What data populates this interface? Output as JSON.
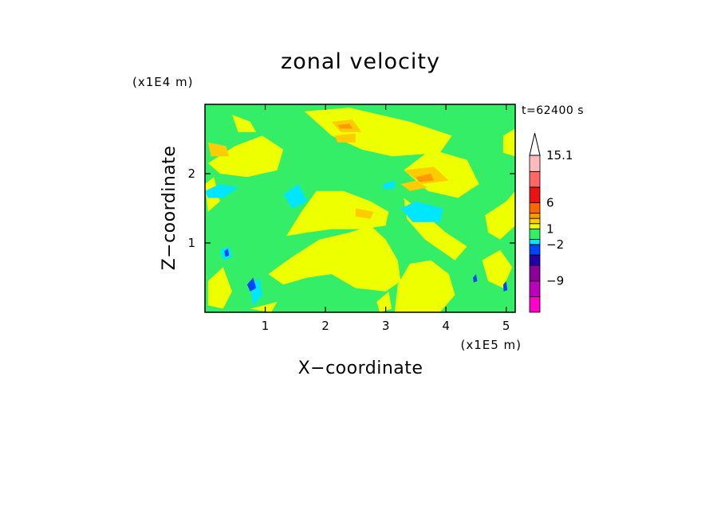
{
  "chart_data": {
    "type": "heatmap",
    "title": "zonal velocity",
    "xlabel": "X−coordinate",
    "ylabel": "Z−coordinate",
    "x_unit": "(x1E5 m)",
    "y_unit": "(x1E4 m)",
    "time_label": "t=62400 s",
    "xlim": [
      0.0,
      5.15
    ],
    "ylim": [
      0.0,
      3.0
    ],
    "x_ticks": [
      {
        "value": 1,
        "label": "1"
      },
      {
        "value": 2,
        "label": "2"
      },
      {
        "value": 3,
        "label": "3"
      },
      {
        "value": 4,
        "label": "4"
      },
      {
        "value": 5,
        "label": "5"
      }
    ],
    "y_ticks": [
      {
        "value": 1,
        "label": "1"
      },
      {
        "value": 2,
        "label": "2"
      }
    ],
    "colorbar": {
      "levels": [
        {
          "color": "#ff00c8"
        },
        {
          "color": "#bd00bd"
        },
        {
          "color": "#8c009a"
        },
        {
          "color": "#2200aa"
        },
        {
          "color": "#0044ff"
        },
        {
          "color": "#00e6ff"
        },
        {
          "color": "#33ee66"
        },
        {
          "color": "#eeff00"
        },
        {
          "color": "#ffcc00"
        },
        {
          "color": "#ff9900"
        },
        {
          "color": "#ff6600"
        },
        {
          "color": "#ee1111"
        },
        {
          "color": "#ff6666"
        },
        {
          "color": "#ffbbbb"
        }
      ],
      "extend_max_color": "#ffffff",
      "labels": [
        {
          "value": 15.1,
          "label": "15.1"
        },
        {
          "value": 6,
          "label": "6"
        },
        {
          "value": 1,
          "label": "1"
        },
        {
          "value": -2,
          "label": "−2"
        },
        {
          "value": -9,
          "label": "−9"
        }
      ]
    },
    "field": {
      "background_color": "#33ee66",
      "regions": [
        {
          "color": "#eeff00",
          "points": [
            [
              1.05,
              0.55
            ],
            [
              1.45,
              0.8
            ],
            [
              1.9,
              1.05
            ],
            [
              2.4,
              1.15
            ],
            [
              2.75,
              1.25
            ],
            [
              3.0,
              1.05
            ],
            [
              3.2,
              0.75
            ],
            [
              3.25,
              0.45
            ],
            [
              3.0,
              0.3
            ],
            [
              2.5,
              0.35
            ],
            [
              2.1,
              0.55
            ],
            [
              1.7,
              0.5
            ],
            [
              1.3,
              0.4
            ]
          ]
        },
        {
          "color": "#eeff00",
          "points": [
            [
              1.35,
              1.1
            ],
            [
              1.6,
              1.45
            ],
            [
              1.85,
              1.75
            ],
            [
              2.3,
              1.75
            ],
            [
              2.75,
              1.6
            ],
            [
              3.05,
              1.45
            ],
            [
              3.0,
              1.25
            ],
            [
              2.6,
              1.2
            ],
            [
              2.1,
              1.2
            ],
            [
              1.7,
              1.15
            ]
          ]
        },
        {
          "color": "#eeff00",
          "points": [
            [
              0.05,
              2.15
            ],
            [
              0.5,
              2.4
            ],
            [
              0.95,
              2.55
            ],
            [
              1.3,
              2.35
            ],
            [
              1.2,
              2.05
            ],
            [
              0.7,
              1.95
            ],
            [
              0.25,
              2.0
            ]
          ]
        },
        {
          "color": "#eeff00",
          "points": [
            [
              1.65,
              2.9
            ],
            [
              2.4,
              2.95
            ],
            [
              3.4,
              2.75
            ],
            [
              4.1,
              2.55
            ],
            [
              3.9,
              2.3
            ],
            [
              3.1,
              2.25
            ],
            [
              2.6,
              2.35
            ],
            [
              2.1,
              2.55
            ]
          ]
        },
        {
          "color": "#eeff00",
          "points": [
            [
              3.3,
              2.05
            ],
            [
              3.75,
              2.35
            ],
            [
              4.35,
              2.2
            ],
            [
              4.55,
              1.85
            ],
            [
              4.2,
              1.65
            ],
            [
              3.7,
              1.75
            ]
          ]
        },
        {
          "color": "#eeff00",
          "points": [
            [
              3.3,
              1.65
            ],
            [
              3.6,
              1.45
            ],
            [
              4.0,
              1.15
            ],
            [
              4.35,
              0.95
            ],
            [
              4.15,
              0.75
            ],
            [
              3.65,
              1.05
            ],
            [
              3.35,
              1.35
            ]
          ]
        },
        {
          "color": "#eeff00",
          "points": [
            [
              3.15,
              0.0
            ],
            [
              3.9,
              0.0
            ],
            [
              4.15,
              0.25
            ],
            [
              4.05,
              0.55
            ],
            [
              3.75,
              0.75
            ],
            [
              3.4,
              0.7
            ],
            [
              3.2,
              0.4
            ]
          ]
        },
        {
          "color": "#eeff00",
          "points": [
            [
              4.65,
              1.4
            ],
            [
              5.0,
              1.6
            ],
            [
              5.15,
              1.75
            ],
            [
              5.15,
              1.25
            ],
            [
              4.9,
              1.05
            ],
            [
              4.7,
              1.15
            ]
          ]
        },
        {
          "color": "#eeff00",
          "points": [
            [
              4.6,
              0.75
            ],
            [
              4.9,
              0.9
            ],
            [
              5.1,
              0.65
            ],
            [
              4.95,
              0.35
            ],
            [
              4.7,
              0.45
            ]
          ]
        },
        {
          "color": "#eeff00",
          "points": [
            [
              0.05,
              0.45
            ],
            [
              0.3,
              0.65
            ],
            [
              0.45,
              0.3
            ],
            [
              0.3,
              0.05
            ],
            [
              0.05,
              0.1
            ]
          ]
        },
        {
          "color": "#eeff00",
          "points": [
            [
              0.0,
              1.85
            ],
            [
              0.15,
              1.95
            ],
            [
              0.25,
              1.6
            ],
            [
              0.05,
              1.45
            ]
          ]
        },
        {
          "color": "#eeff00",
          "points": [
            [
              2.85,
              0.15
            ],
            [
              3.05,
              0.3
            ],
            [
              3.1,
              0.05
            ],
            [
              2.9,
              0.0
            ]
          ]
        },
        {
          "color": "#eeff00",
          "points": [
            [
              4.95,
              2.55
            ],
            [
              5.15,
              2.65
            ],
            [
              5.15,
              2.25
            ],
            [
              4.95,
              2.3
            ]
          ]
        },
        {
          "color": "#eeff00",
          "points": [
            [
              0.45,
              2.85
            ],
            [
              0.75,
              2.75
            ],
            [
              0.85,
              2.6
            ],
            [
              0.55,
              2.6
            ]
          ]
        },
        {
          "color": "#eeff00",
          "points": [
            [
              0.75,
              0.05
            ],
            [
              1.2,
              0.15
            ],
            [
              1.1,
              0.0
            ]
          ]
        },
        {
          "color": "#ffcc00",
          "points": [
            [
              0.05,
              2.45
            ],
            [
              0.35,
              2.4
            ],
            [
              0.4,
              2.25
            ],
            [
              0.1,
              2.25
            ]
          ]
        },
        {
          "color": "#ffcc00",
          "points": [
            [
              3.25,
              1.85
            ],
            [
              3.5,
              1.9
            ],
            [
              3.7,
              1.8
            ],
            [
              3.4,
              1.75
            ]
          ]
        },
        {
          "color": "#ffcc00",
          "points": [
            [
              2.15,
              2.55
            ],
            [
              2.5,
              2.58
            ],
            [
              2.5,
              2.45
            ],
            [
              2.2,
              2.45
            ]
          ]
        },
        {
          "color": "#ffcc00",
          "points": [
            [
              2.5,
              1.5
            ],
            [
              2.8,
              1.45
            ],
            [
              2.75,
              1.35
            ],
            [
              2.5,
              1.38
            ]
          ]
        },
        {
          "color": "#ffcc00",
          "points": [
            [
              3.3,
              2.05
            ],
            [
              3.8,
              2.1
            ],
            [
              4.05,
              1.9
            ],
            [
              3.6,
              1.85
            ]
          ]
        },
        {
          "color": "#ffcc00",
          "points": [
            [
              2.1,
              2.75
            ],
            [
              2.45,
              2.78
            ],
            [
              2.6,
              2.6
            ],
            [
              2.25,
              2.6
            ]
          ]
        },
        {
          "color": "#ff9900",
          "points": [
            [
              3.5,
              1.95
            ],
            [
              3.75,
              2.0
            ],
            [
              3.8,
              1.9
            ],
            [
              3.55,
              1.88
            ]
          ]
        },
        {
          "color": "#ff9900",
          "points": [
            [
              2.2,
              2.7
            ],
            [
              2.4,
              2.72
            ],
            [
              2.45,
              2.65
            ],
            [
              2.25,
              2.65
            ]
          ]
        },
        {
          "color": "#00e6ff",
          "points": [
            [
              3.25,
              1.5
            ],
            [
              3.5,
              1.6
            ],
            [
              3.95,
              1.5
            ],
            [
              3.9,
              1.3
            ],
            [
              3.45,
              1.3
            ]
          ]
        },
        {
          "color": "#00e6ff",
          "points": [
            [
              0.0,
              1.75
            ],
            [
              0.25,
              1.85
            ],
            [
              0.55,
              1.8
            ],
            [
              0.3,
              1.65
            ],
            [
              0.05,
              1.65
            ]
          ]
        },
        {
          "color": "#00e6ff",
          "points": [
            [
              1.3,
              1.7
            ],
            [
              1.55,
              1.85
            ],
            [
              1.7,
              1.6
            ],
            [
              1.45,
              1.5
            ]
          ]
        },
        {
          "color": "#00e6ff",
          "points": [
            [
              0.75,
              0.35
            ],
            [
              0.9,
              0.5
            ],
            [
              0.95,
              0.25
            ],
            [
              0.8,
              0.1
            ]
          ]
        },
        {
          "color": "#00e6ff",
          "points": [
            [
              2.95,
              1.85
            ],
            [
              3.15,
              1.9
            ],
            [
              3.15,
              1.78
            ],
            [
              2.95,
              1.78
            ]
          ]
        },
        {
          "color": "#00e6ff",
          "points": [
            [
              0.25,
              0.9
            ],
            [
              0.4,
              0.95
            ],
            [
              0.45,
              0.8
            ],
            [
              0.3,
              0.75
            ]
          ]
        },
        {
          "color": "#0044ff",
          "points": [
            [
              0.7,
              0.4
            ],
            [
              0.8,
              0.5
            ],
            [
              0.85,
              0.35
            ],
            [
              0.75,
              0.3
            ]
          ]
        },
        {
          "color": "#0044ff",
          "points": [
            [
              0.32,
              0.88
            ],
            [
              0.38,
              0.92
            ],
            [
              0.4,
              0.82
            ],
            [
              0.34,
              0.8
            ]
          ]
        },
        {
          "color": "#0044ff",
          "points": [
            [
              4.95,
              0.4
            ],
            [
              5.0,
              0.45
            ],
            [
              5.02,
              0.32
            ],
            [
              4.96,
              0.3
            ]
          ]
        },
        {
          "color": "#0044ff",
          "points": [
            [
              4.45,
              0.5
            ],
            [
              4.5,
              0.55
            ],
            [
              4.52,
              0.45
            ],
            [
              4.46,
              0.43
            ]
          ]
        }
      ]
    }
  }
}
